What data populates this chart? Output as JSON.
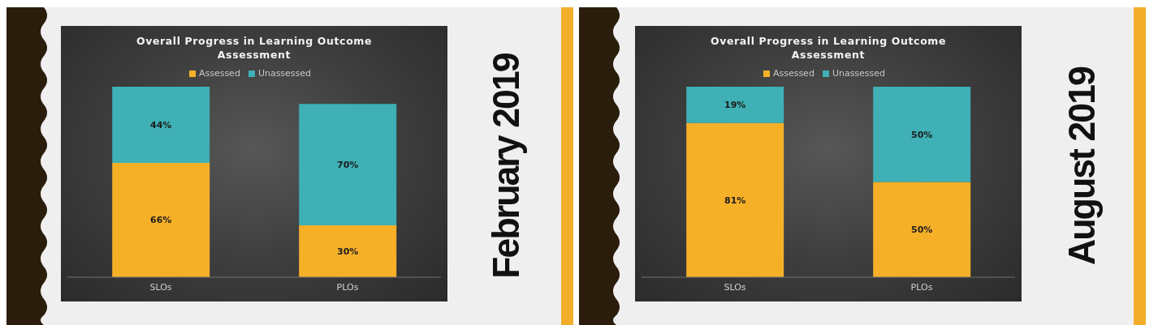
{
  "chart_data": [
    {
      "type": "bar",
      "title": "Overall Progress in Learning Outcome Assessment",
      "categories": [
        "SLOs",
        "PLOs"
      ],
      "series": [
        {
          "name": "Assessed",
          "color": "#f6b028",
          "values": [
            66,
            30
          ],
          "value_labels": [
            "66%",
            "30%"
          ]
        },
        {
          "name": "Unassessed",
          "color": "#3fb0b5",
          "values": [
            44,
            70
          ],
          "value_labels": [
            "44%",
            "70%"
          ]
        }
      ],
      "stacked": true,
      "legend": "top",
      "tick_labels": "x",
      "annotations": [
        "February 2019"
      ]
    },
    {
      "type": "bar",
      "title": "Overall Progress in Learning Outcome Assessment",
      "categories": [
        "SLOs",
        "PLOs"
      ],
      "series": [
        {
          "name": "Assessed",
          "color": "#f6b028",
          "values": [
            81,
            50
          ],
          "value_labels": [
            "81%",
            "50%"
          ]
        },
        {
          "name": "Unassessed",
          "color": "#3fb0b5",
          "values": [
            19,
            50
          ],
          "value_labels": [
            "19%",
            "50%"
          ]
        }
      ],
      "stacked": true,
      "legend": "top",
      "tick_labels": "x",
      "annotations": [
        "August 2019"
      ]
    }
  ]
}
